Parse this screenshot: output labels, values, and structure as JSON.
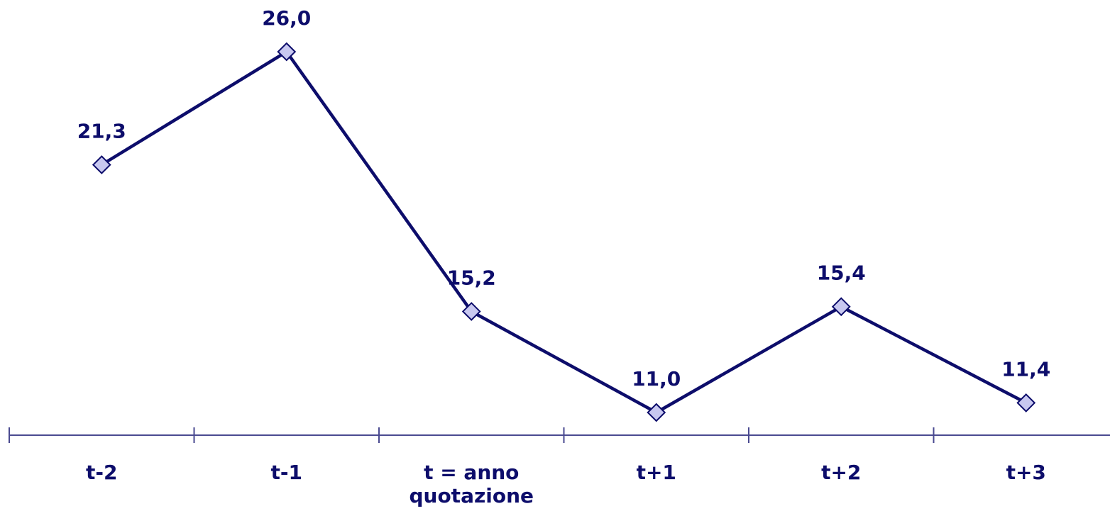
{
  "chart_data": {
    "type": "line",
    "categories": [
      "t-2",
      "t-1",
      "t = anno quotazione",
      "t+1",
      "t+2",
      "t+3"
    ],
    "category_lines": [
      [
        "t-2"
      ],
      [
        "t-1"
      ],
      [
        "t = anno",
        "quotazione"
      ],
      [
        "t+1"
      ],
      [
        "t+2"
      ],
      [
        "t+3"
      ]
    ],
    "values": [
      21.3,
      26.0,
      15.2,
      11.0,
      15.4,
      11.4
    ],
    "value_labels": [
      "21,3",
      "26,0",
      "15,2",
      "11,0",
      "15,4",
      "11,4"
    ],
    "title": "",
    "xlabel": "",
    "ylabel": "",
    "ylim": [
      11.0,
      26.0
    ],
    "grid": false,
    "legend": "none",
    "colors": {
      "line": "#0d0d6b",
      "marker_fill": "#c8c8f0",
      "marker_stroke": "#0d0d6b",
      "axis": "#4a4a90",
      "text": "#0d0d6b"
    }
  }
}
